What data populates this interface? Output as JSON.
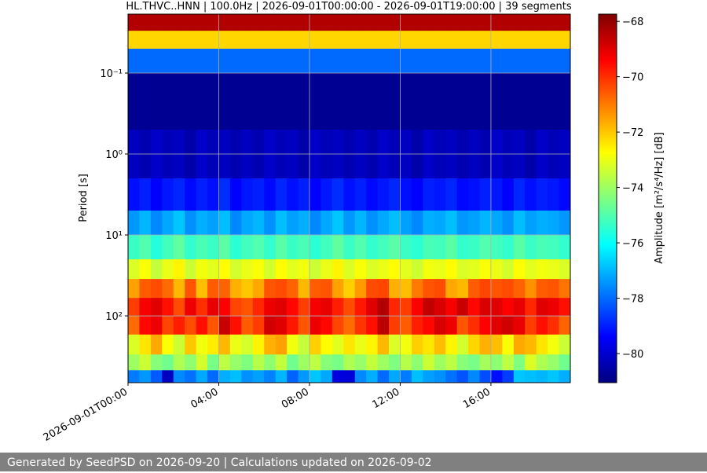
{
  "chart_data": {
    "type": "heatmap",
    "title": "HL.THVC..HNN | 100.0Hz | 2026-09-01T00:00:00 - 2026-09-01T19:00:00 | 39 segments",
    "y_label": "Period [s]",
    "colorbar_label": "Amplitude [m²/s⁴/Hz] [dB]",
    "footer": "Generated by SeedPSD on 2026-09-20 | Calculations updated on 2026-09-02",
    "colormap": "jet",
    "x_bins": [
      0,
      0.5,
      1,
      1.5,
      2,
      2.5,
      3,
      3.5,
      4,
      4.5,
      5,
      5.5,
      6,
      6.5,
      7,
      7.5,
      8,
      8.5,
      9,
      9.5,
      10,
      10.5,
      11,
      11.5,
      12,
      12.5,
      13,
      13.5,
      14,
      14.5,
      15,
      15.5,
      16,
      16.5,
      17,
      17.5,
      18,
      18.5,
      19,
      19.5
    ],
    "xlim": [
      0,
      19.5
    ],
    "xticks": [
      {
        "value": 0,
        "label": "2026-09-01T00:00"
      },
      {
        "value": 4,
        "label": "04:00"
      },
      {
        "value": 8,
        "label": "08:00"
      },
      {
        "value": 12,
        "label": "12:00"
      },
      {
        "value": 16,
        "label": "16:00"
      }
    ],
    "y_bins": [
      0.0187,
      0.03,
      0.05,
      0.1,
      0.5,
      2,
      5,
      10,
      20,
      35,
      60,
      100,
      170,
      300,
      470,
      668
    ],
    "ylim": [
      0.0187,
      668
    ],
    "y_log": true,
    "y_inverted": true,
    "yticks": [
      {
        "value": 0.1,
        "label": "10⁻¹"
      },
      {
        "value": 1,
        "label": "10⁰"
      },
      {
        "value": 10,
        "label": "10¹"
      },
      {
        "value": 100,
        "label": "10²"
      }
    ],
    "grid": true,
    "clim": [
      -81.05,
      -67.74
    ],
    "cticks": [
      {
        "value": -68,
        "label": "−68"
      },
      {
        "value": -70,
        "label": "−70"
      },
      {
        "value": -72,
        "label": "−72"
      },
      {
        "value": -74,
        "label": "−74"
      },
      {
        "value": -76,
        "label": "−76"
      },
      {
        "value": -78,
        "label": "−78"
      },
      {
        "value": -80,
        "label": "−80"
      }
    ],
    "z": [
      [
        -68.4,
        -68.4,
        -68.4,
        -68.4,
        -68.4,
        -68.4,
        -68.4,
        -68.4,
        -68.4,
        -68.4,
        -68.4,
        -68.4,
        -68.4,
        -68.4,
        -68.4,
        -68.4,
        -68.4,
        -68.4,
        -68.4,
        -68.4,
        -68.4,
        -68.4,
        -68.4,
        -68.4,
        -68.4,
        -68.4,
        -68.4,
        -68.4,
        -68.4,
        -68.4,
        -68.4,
        -68.4,
        -68.4,
        -68.4,
        -68.4,
        -68.4,
        -68.4,
        -68.4,
        -68.4
      ],
      [
        -72.2,
        -72.2,
        -72.2,
        -72.2,
        -72.2,
        -72.2,
        -72.2,
        -72.2,
        -72.2,
        -72.2,
        -72.2,
        -72.2,
        -72.2,
        -72.2,
        -72.2,
        -72.2,
        -72.2,
        -72.2,
        -72.2,
        -72.2,
        -72.2,
        -72.2,
        -72.2,
        -72.2,
        -72.2,
        -72.2,
        -72.2,
        -72.2,
        -72.2,
        -72.2,
        -72.2,
        -72.2,
        -72.2,
        -72.2,
        -72.2,
        -72.2,
        -72.2,
        -72.2,
        -72.2
      ],
      [
        -78.0,
        -78.0,
        -78.0,
        -78.0,
        -78.0,
        -78.0,
        -78.0,
        -78.0,
        -78.0,
        -78.0,
        -78.0,
        -78.0,
        -78.0,
        -78.0,
        -78.0,
        -78.0,
        -78.0,
        -78.0,
        -78.0,
        -78.0,
        -78.0,
        -78.0,
        -78.0,
        -78.0,
        -78.0,
        -78.0,
        -78.0,
        -78.0,
        -78.0,
        -78.0,
        -78.0,
        -78.0,
        -78.0,
        -78.0,
        -78.0,
        -78.0,
        -78.0,
        -78.0,
        -78.0
      ],
      [
        -80.8,
        -80.8,
        -80.8,
        -80.8,
        -80.8,
        -80.8,
        -80.8,
        -80.8,
        -80.8,
        -80.8,
        -80.8,
        -80.8,
        -80.8,
        -80.8,
        -80.8,
        -80.8,
        -80.8,
        -80.8,
        -80.8,
        -80.8,
        -80.8,
        -80.8,
        -80.8,
        -80.8,
        -80.8,
        -80.8,
        -80.8,
        -80.8,
        -80.8,
        -80.8,
        -80.8,
        -80.8,
        -80.8,
        -80.8,
        -80.8,
        -80.8,
        -80.8,
        -80.8,
        -80.8
      ],
      [
        -80.2,
        -80.4,
        -80.1,
        -80.3,
        -80.2,
        -80.5,
        -80.1,
        -80.3,
        -80.2,
        -80.4,
        -80.2,
        -80.4,
        -80.1,
        -80.3,
        -80.2,
        -80.5,
        -80.1,
        -80.3,
        -80.2,
        -80.4,
        -80.2,
        -80.4,
        -80.1,
        -80.3,
        -80.2,
        -80.5,
        -80.1,
        -80.3,
        -80.2,
        -80.4,
        -80.2,
        -80.4,
        -80.1,
        -80.3,
        -80.2,
        -80.5,
        -80.1,
        -80.3,
        -80.2
      ],
      [
        -79.2,
        -79.0,
        -79.4,
        -79.1,
        -78.9,
        -79.3,
        -79.0,
        -79.2,
        -78.8,
        -79.4,
        -79.1,
        -79.0,
        -79.3,
        -78.9,
        -79.2,
        -79.0,
        -79.4,
        -79.1,
        -78.8,
        -79.2,
        -79.0,
        -79.3,
        -79.1,
        -78.9,
        -79.2,
        -79.4,
        -79.0,
        -79.1,
        -78.9,
        -79.3,
        -79.2,
        -79.0,
        -79.1,
        -79.4,
        -78.9,
        -79.2,
        -79.0,
        -79.1,
        -79.3
      ],
      [
        -77.4,
        -77.0,
        -77.6,
        -77.2,
        -76.8,
        -77.5,
        -77.1,
        -77.3,
        -76.9,
        -77.6,
        -77.2,
        -77.0,
        -77.5,
        -76.9,
        -77.3,
        -77.1,
        -77.6,
        -77.2,
        -76.8,
        -77.4,
        -77.0,
        -77.5,
        -77.2,
        -76.9,
        -77.3,
        -77.6,
        -77.1,
        -77.2,
        -76.9,
        -77.4,
        -77.3,
        -77.0,
        -77.2,
        -77.5,
        -76.9,
        -77.3,
        -77.1,
        -77.2,
        -77.4
      ],
      [
        -75.3,
        -75.0,
        -75.6,
        -75.2,
        -74.8,
        -75.4,
        -75.1,
        -75.3,
        -74.9,
        -75.5,
        -75.2,
        -75.0,
        -75.4,
        -74.9,
        -75.3,
        -75.1,
        -75.5,
        -75.2,
        -74.8,
        -75.3,
        -75.0,
        -75.4,
        -75.2,
        -74.9,
        -75.3,
        -75.5,
        -75.1,
        -75.2,
        -74.9,
        -75.4,
        -75.3,
        -75.0,
        -75.2,
        -75.4,
        -74.9,
        -75.3,
        -75.1,
        -75.2,
        -75.4
      ],
      [
        -73.2,
        -72.8,
        -73.5,
        -73.0,
        -72.6,
        -73.4,
        -72.9,
        -73.1,
        -72.7,
        -73.3,
        -73.0,
        -72.8,
        -73.3,
        -72.7,
        -73.1,
        -72.9,
        -73.4,
        -73.0,
        -72.6,
        -73.2,
        -72.8,
        -73.2,
        -73.0,
        -72.7,
        -73.1,
        -73.4,
        -72.9,
        -73.0,
        -72.7,
        -73.2,
        -73.1,
        -72.8,
        -73.0,
        -73.3,
        -72.7,
        -73.1,
        -72.9,
        -73.0,
        -73.2
      ],
      [
        -71.5,
        -70.6,
        -70.4,
        -70.8,
        -71.8,
        -70.5,
        -71.9,
        -70.6,
        -70.7,
        -71.7,
        -72.0,
        -71.6,
        -70.5,
        -70.4,
        -70.7,
        -71.8,
        -70.6,
        -70.5,
        -71.5,
        -72.1,
        -71.4,
        -70.4,
        -70.3,
        -71.7,
        -71.9,
        -71.0,
        -70.5,
        -70.4,
        -71.6,
        -71.8,
        -70.6,
        -70.3,
        -70.5,
        -70.4,
        -70.7,
        -71.3,
        -70.6,
        -70.5,
        -70.9
      ],
      [
        -70.2,
        -69.3,
        -69.0,
        -69.6,
        -70.4,
        -69.2,
        -70.0,
        -69.1,
        -69.4,
        -70.3,
        -70.5,
        -69.9,
        -69.2,
        -69.0,
        -69.5,
        -70.2,
        -69.3,
        -69.1,
        -69.8,
        -70.4,
        -69.7,
        -69.0,
        -68.4,
        -69.9,
        -70.2,
        -69.4,
        -68.6,
        -68.9,
        -69.3,
        -68.7,
        -69.5,
        -68.9,
        -69.0,
        -69.4,
        -69.1,
        -69.9,
        -69.0,
        -69.2,
        -69.6
      ],
      [
        -70.8,
        -69.5,
        -69.2,
        -70.3,
        -69.8,
        -70.4,
        -69.6,
        -70.5,
        -68.7,
        -69.6,
        -70.6,
        -70.2,
        -68.8,
        -69.0,
        -69.7,
        -70.5,
        -69.2,
        -69.5,
        -70.3,
        -70.8,
        -70.1,
        -69.6,
        -68.5,
        -70.2,
        -70.6,
        -69.8,
        -69.5,
        -68.9,
        -69.2,
        -70.5,
        -70.0,
        -69.4,
        -69.0,
        -68.8,
        -69.1,
        -70.2,
        -69.6,
        -70.0,
        -70.7
      ],
      [
        -73.2,
        -72.4,
        -71.6,
        -72.8,
        -73.4,
        -72.0,
        -72.9,
        -72.5,
        -71.8,
        -73.0,
        -73.3,
        -72.6,
        -71.7,
        -71.5,
        -72.9,
        -73.5,
        -72.1,
        -72.7,
        -73.1,
        -72.4,
        -73.0,
        -72.6,
        -71.8,
        -73.2,
        -72.9,
        -72.1,
        -72.4,
        -71.9,
        -72.6,
        -73.3,
        -72.2,
        -71.7,
        -71.9,
        -72.8,
        -71.6,
        -71.8,
        -72.4,
        -72.9,
        -73.4
      ],
      [
        -74.0,
        -73.4,
        -74.3,
        -74.6,
        -73.8,
        -74.2,
        -73.3,
        -74.5,
        -73.6,
        -74.1,
        -74.4,
        -73.7,
        -74.2,
        -73.5,
        -74.6,
        -74.0,
        -73.6,
        -74.3,
        -74.5,
        -73.8,
        -74.1,
        -73.5,
        -74.0,
        -74.4,
        -73.7,
        -74.2,
        -73.4,
        -74.0,
        -73.6,
        -74.3,
        -74.5,
        -73.9,
        -74.2,
        -73.6,
        -74.4,
        -73.2,
        -73.8,
        -74.1,
        -74.6
      ],
      [
        -77.8,
        -77.4,
        -78.2,
        -80.2,
        -77.6,
        -77.9,
        -77.2,
        -78.0,
        -77.1,
        -76.9,
        -77.5,
        -77.3,
        -77.7,
        -77.0,
        -78.1,
        -77.4,
        -76.8,
        -77.2,
        -79.8,
        -79.9,
        -77.6,
        -77.1,
        -78.0,
        -77.2,
        -77.8,
        -76.9,
        -77.3,
        -77.5,
        -77.9,
        -78.3,
        -77.6,
        -78.4,
        -79.2,
        -78.6,
        -76.8,
        -76.9,
        -77.0,
        -76.8,
        -77.1
      ]
    ]
  }
}
